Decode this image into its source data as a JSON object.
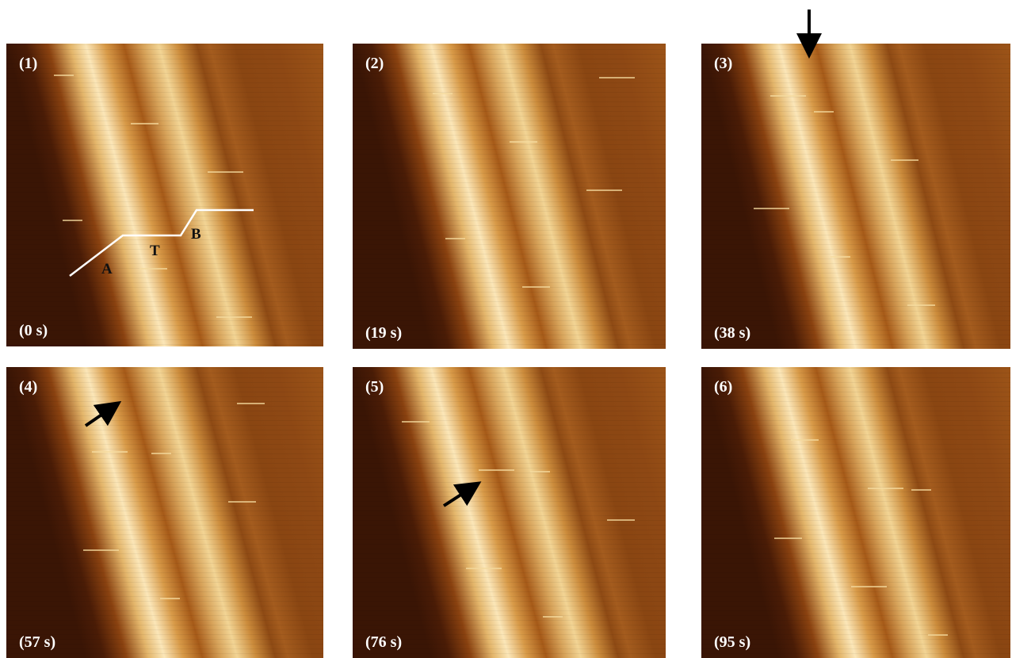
{
  "panels": [
    {
      "label": "(1)",
      "time": "(0 s)"
    },
    {
      "label": "(2)",
      "time": "(19 s)"
    },
    {
      "label": "(3)",
      "time": "(38 s)"
    },
    {
      "label": "(4)",
      "time": "(57 s)"
    },
    {
      "label": "(5)",
      "time": "(76 s)"
    },
    {
      "label": "(6)",
      "time": "(95 s)"
    }
  ],
  "profile_labels": {
    "a": "A",
    "t": "T",
    "b": "B"
  }
}
